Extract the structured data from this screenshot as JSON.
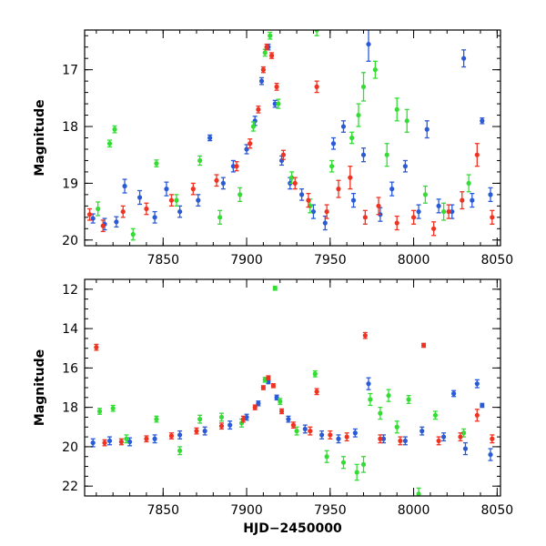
{
  "chart_data": [
    {
      "type": "scatter",
      "panel": "top",
      "xlabel": "",
      "ylabel": "Magnitude",
      "xlim": [
        7803,
        8052
      ],
      "ylim": [
        20.1,
        16.3
      ],
      "y_inverted": true,
      "x_ticks": [
        7850,
        7900,
        7950,
        8000,
        8050
      ],
      "y_ticks": [
        17,
        18,
        19,
        20
      ],
      "error_bars": true,
      "grid": false,
      "legend": "none",
      "series": [
        {
          "color": "#2a5ad6",
          "points": [
            {
              "x": 7808,
              "y": 19.62,
              "e": 0.08
            },
            {
              "x": 7815,
              "y": 19.72,
              "e": 0.1
            },
            {
              "x": 7822,
              "y": 19.68,
              "e": 0.09
            },
            {
              "x": 7827,
              "y": 19.05,
              "e": 0.12
            },
            {
              "x": 7836,
              "y": 19.25,
              "e": 0.12
            },
            {
              "x": 7845,
              "y": 19.6,
              "e": 0.1
            },
            {
              "x": 7852,
              "y": 19.1,
              "e": 0.12
            },
            {
              "x": 7860,
              "y": 19.5,
              "e": 0.1
            },
            {
              "x": 7871,
              "y": 19.3,
              "e": 0.1
            },
            {
              "x": 7878,
              "y": 18.2,
              "e": 0.05
            },
            {
              "x": 7886,
              "y": 19.0,
              "e": 0.1
            },
            {
              "x": 7892,
              "y": 18.7,
              "e": 0.1
            },
            {
              "x": 7900,
              "y": 18.4,
              "e": 0.08
            },
            {
              "x": 7905,
              "y": 17.9,
              "e": 0.08
            },
            {
              "x": 7909,
              "y": 17.2,
              "e": 0.06
            },
            {
              "x": 7913,
              "y": 16.6,
              "e": 0.05
            },
            {
              "x": 7917,
              "y": 17.6,
              "e": 0.06
            },
            {
              "x": 7921,
              "y": 18.6,
              "e": 0.08
            },
            {
              "x": 7926,
              "y": 19.0,
              "e": 0.1
            },
            {
              "x": 7933,
              "y": 19.2,
              "e": 0.1
            },
            {
              "x": 7940,
              "y": 19.5,
              "e": 0.12
            },
            {
              "x": 7947,
              "y": 19.7,
              "e": 0.12
            },
            {
              "x": 7952,
              "y": 18.3,
              "e": 0.1
            },
            {
              "x": 7958,
              "y": 18.0,
              "e": 0.1
            },
            {
              "x": 7964,
              "y": 19.3,
              "e": 0.12
            },
            {
              "x": 7970,
              "y": 18.5,
              "e": 0.12
            },
            {
              "x": 7973,
              "y": 16.55,
              "e": 0.3
            },
            {
              "x": 7980,
              "y": 19.55,
              "e": 0.12
            },
            {
              "x": 7987,
              "y": 19.1,
              "e": 0.12
            },
            {
              "x": 7995,
              "y": 18.7,
              "e": 0.1
            },
            {
              "x": 8003,
              "y": 19.5,
              "e": 0.12
            },
            {
              "x": 8008,
              "y": 18.05,
              "e": 0.15
            },
            {
              "x": 8015,
              "y": 19.4,
              "e": 0.12
            },
            {
              "x": 8023,
              "y": 19.5,
              "e": 0.12
            },
            {
              "x": 8030,
              "y": 16.8,
              "e": 0.15
            },
            {
              "x": 8035,
              "y": 19.3,
              "e": 0.12
            },
            {
              "x": 8041,
              "y": 17.9,
              "e": 0.05
            },
            {
              "x": 8046,
              "y": 19.2,
              "e": 0.12
            }
          ]
        },
        {
          "color": "#33dd33",
          "points": [
            {
              "x": 7811,
              "y": 19.45,
              "e": 0.12
            },
            {
              "x": 7818,
              "y": 18.3,
              "e": 0.06
            },
            {
              "x": 7821,
              "y": 18.05,
              "e": 0.06
            },
            {
              "x": 7832,
              "y": 19.9,
              "e": 0.1
            },
            {
              "x": 7846,
              "y": 18.65,
              "e": 0.06
            },
            {
              "x": 7858,
              "y": 19.3,
              "e": 0.1
            },
            {
              "x": 7872,
              "y": 18.6,
              "e": 0.08
            },
            {
              "x": 7884,
              "y": 19.6,
              "e": 0.12
            },
            {
              "x": 7896,
              "y": 19.2,
              "e": 0.12
            },
            {
              "x": 7904,
              "y": 18.0,
              "e": 0.08
            },
            {
              "x": 7911,
              "y": 16.7,
              "e": 0.06
            },
            {
              "x": 7914,
              "y": 16.4,
              "e": 0.06
            },
            {
              "x": 7919,
              "y": 17.6,
              "e": 0.08
            },
            {
              "x": 7927,
              "y": 18.9,
              "e": 0.1
            },
            {
              "x": 7938,
              "y": 19.4,
              "e": 0.12
            },
            {
              "x": 7942,
              "y": 16.3,
              "e": 0.1
            },
            {
              "x": 7951,
              "y": 18.7,
              "e": 0.1
            },
            {
              "x": 7963,
              "y": 18.2,
              "e": 0.1
            },
            {
              "x": 7967,
              "y": 17.8,
              "e": 0.2
            },
            {
              "x": 7970,
              "y": 17.3,
              "e": 0.25
            },
            {
              "x": 7977,
              "y": 17.0,
              "e": 0.15
            },
            {
              "x": 7984,
              "y": 18.5,
              "e": 0.2
            },
            {
              "x": 7990,
              "y": 17.7,
              "e": 0.2
            },
            {
              "x": 7996,
              "y": 17.9,
              "e": 0.2
            },
            {
              "x": 8007,
              "y": 19.2,
              "e": 0.15
            },
            {
              "x": 8018,
              "y": 19.5,
              "e": 0.15
            },
            {
              "x": 8033,
              "y": 19.0,
              "e": 0.15
            }
          ]
        },
        {
          "color": "#ee3322",
          "points": [
            {
              "x": 7806,
              "y": 19.55,
              "e": 0.1
            },
            {
              "x": 7814,
              "y": 19.75,
              "e": 0.1
            },
            {
              "x": 7826,
              "y": 19.5,
              "e": 0.1
            },
            {
              "x": 7840,
              "y": 19.45,
              "e": 0.1
            },
            {
              "x": 7855,
              "y": 19.3,
              "e": 0.1
            },
            {
              "x": 7868,
              "y": 19.1,
              "e": 0.1
            },
            {
              "x": 7882,
              "y": 18.95,
              "e": 0.1
            },
            {
              "x": 7894,
              "y": 18.7,
              "e": 0.08
            },
            {
              "x": 7902,
              "y": 18.3,
              "e": 0.08
            },
            {
              "x": 7907,
              "y": 17.7,
              "e": 0.06
            },
            {
              "x": 7910,
              "y": 17.0,
              "e": 0.05
            },
            {
              "x": 7912,
              "y": 16.6,
              "e": 0.05
            },
            {
              "x": 7915,
              "y": 16.75,
              "e": 0.05
            },
            {
              "x": 7918,
              "y": 17.3,
              "e": 0.06
            },
            {
              "x": 7922,
              "y": 18.5,
              "e": 0.08
            },
            {
              "x": 7929,
              "y": 19.0,
              "e": 0.1
            },
            {
              "x": 7937,
              "y": 19.3,
              "e": 0.12
            },
            {
              "x": 7942,
              "y": 17.3,
              "e": 0.1
            },
            {
              "x": 7948,
              "y": 19.5,
              "e": 0.12
            },
            {
              "x": 7955,
              "y": 19.1,
              "e": 0.15
            },
            {
              "x": 7962,
              "y": 18.9,
              "e": 0.2
            },
            {
              "x": 7971,
              "y": 19.6,
              "e": 0.12
            },
            {
              "x": 7979,
              "y": 19.4,
              "e": 0.15
            },
            {
              "x": 7990,
              "y": 19.7,
              "e": 0.12
            },
            {
              "x": 8000,
              "y": 19.6,
              "e": 0.12
            },
            {
              "x": 8012,
              "y": 19.8,
              "e": 0.12
            },
            {
              "x": 8021,
              "y": 19.5,
              "e": 0.12
            },
            {
              "x": 8029,
              "y": 19.3,
              "e": 0.15
            },
            {
              "x": 8038,
              "y": 18.5,
              "e": 0.2
            },
            {
              "x": 8047,
              "y": 19.6,
              "e": 0.12
            }
          ]
        }
      ]
    },
    {
      "type": "scatter",
      "panel": "bottom",
      "xlabel": "HJD−2450000",
      "ylabel": "Magnitude",
      "xlim": [
        7803,
        8052
      ],
      "ylim": [
        22.5,
        11.5
      ],
      "y_inverted": true,
      "x_ticks": [
        7850,
        7900,
        7950,
        8000,
        8050
      ],
      "y_ticks": [
        12,
        14,
        16,
        18,
        20,
        22
      ],
      "error_bars": true,
      "grid": false,
      "legend": "none",
      "series": [
        {
          "color": "#2a5ad6",
          "points": [
            {
              "x": 7808,
              "y": 19.8,
              "e": 0.2
            },
            {
              "x": 7818,
              "y": 19.7,
              "e": 0.2
            },
            {
              "x": 7830,
              "y": 19.75,
              "e": 0.2
            },
            {
              "x": 7845,
              "y": 19.6,
              "e": 0.2
            },
            {
              "x": 7860,
              "y": 19.4,
              "e": 0.2
            },
            {
              "x": 7875,
              "y": 19.2,
              "e": 0.2
            },
            {
              "x": 7890,
              "y": 18.9,
              "e": 0.2
            },
            {
              "x": 7900,
              "y": 18.5,
              "e": 0.15
            },
            {
              "x": 7907,
              "y": 17.8,
              "e": 0.12
            },
            {
              "x": 7913,
              "y": 16.7,
              "e": 0.1
            },
            {
              "x": 7918,
              "y": 17.5,
              "e": 0.12
            },
            {
              "x": 7925,
              "y": 18.6,
              "e": 0.15
            },
            {
              "x": 7935,
              "y": 19.1,
              "e": 0.2
            },
            {
              "x": 7945,
              "y": 19.4,
              "e": 0.2
            },
            {
              "x": 7955,
              "y": 19.6,
              "e": 0.2
            },
            {
              "x": 7965,
              "y": 19.3,
              "e": 0.2
            },
            {
              "x": 7973,
              "y": 16.8,
              "e": 0.3
            },
            {
              "x": 7982,
              "y": 19.6,
              "e": 0.2
            },
            {
              "x": 7995,
              "y": 19.7,
              "e": 0.2
            },
            {
              "x": 8005,
              "y": 19.2,
              "e": 0.2
            },
            {
              "x": 8018,
              "y": 19.5,
              "e": 0.2
            },
            {
              "x": 8024,
              "y": 17.3,
              "e": 0.15
            },
            {
              "x": 8031,
              "y": 20.1,
              "e": 0.3
            },
            {
              "x": 8038,
              "y": 16.8,
              "e": 0.2
            },
            {
              "x": 8041,
              "y": 17.9,
              "e": 0.1
            },
            {
              "x": 8046,
              "y": 20.4,
              "e": 0.3
            }
          ]
        },
        {
          "color": "#33dd33",
          "points": [
            {
              "x": 7812,
              "y": 18.2,
              "e": 0.15
            },
            {
              "x": 7820,
              "y": 18.05,
              "e": 0.15
            },
            {
              "x": 7828,
              "y": 19.6,
              "e": 0.2
            },
            {
              "x": 7846,
              "y": 18.6,
              "e": 0.15
            },
            {
              "x": 7860,
              "y": 20.2,
              "e": 0.2
            },
            {
              "x": 7872,
              "y": 18.6,
              "e": 0.2
            },
            {
              "x": 7885,
              "y": 18.5,
              "e": 0.2
            },
            {
              "x": 7897,
              "y": 18.8,
              "e": 0.2
            },
            {
              "x": 7911,
              "y": 16.6,
              "e": 0.12
            },
            {
              "x": 7917,
              "y": 11.95,
              "e": 0.1
            },
            {
              "x": 7920,
              "y": 17.7,
              "e": 0.15
            },
            {
              "x": 7930,
              "y": 19.2,
              "e": 0.2
            },
            {
              "x": 7941,
              "y": 16.3,
              "e": 0.15
            },
            {
              "x": 7948,
              "y": 20.5,
              "e": 0.3
            },
            {
              "x": 7958,
              "y": 20.8,
              "e": 0.3
            },
            {
              "x": 7966,
              "y": 21.3,
              "e": 0.4
            },
            {
              "x": 7970,
              "y": 20.9,
              "e": 0.4
            },
            {
              "x": 7974,
              "y": 17.6,
              "e": 0.3
            },
            {
              "x": 7980,
              "y": 18.3,
              "e": 0.3
            },
            {
              "x": 7985,
              "y": 17.4,
              "e": 0.3
            },
            {
              "x": 7990,
              "y": 19.0,
              "e": 0.3
            },
            {
              "x": 7997,
              "y": 17.6,
              "e": 0.2
            },
            {
              "x": 8003,
              "y": 22.4,
              "e": 0.3
            },
            {
              "x": 8013,
              "y": 18.4,
              "e": 0.2
            },
            {
              "x": 8030,
              "y": 19.3,
              "e": 0.2
            }
          ]
        },
        {
          "color": "#ee3322",
          "points": [
            {
              "x": 7810,
              "y": 14.95,
              "e": 0.15
            },
            {
              "x": 7815,
              "y": 19.8,
              "e": 0.15
            },
            {
              "x": 7825,
              "y": 19.75,
              "e": 0.15
            },
            {
              "x": 7840,
              "y": 19.6,
              "e": 0.15
            },
            {
              "x": 7855,
              "y": 19.45,
              "e": 0.15
            },
            {
              "x": 7870,
              "y": 19.2,
              "e": 0.15
            },
            {
              "x": 7885,
              "y": 18.95,
              "e": 0.15
            },
            {
              "x": 7898,
              "y": 18.6,
              "e": 0.15
            },
            {
              "x": 7905,
              "y": 18.0,
              "e": 0.12
            },
            {
              "x": 7910,
              "y": 17.0,
              "e": 0.1
            },
            {
              "x": 7913,
              "y": 16.5,
              "e": 0.1
            },
            {
              "x": 7916,
              "y": 16.9,
              "e": 0.1
            },
            {
              "x": 7921,
              "y": 18.2,
              "e": 0.12
            },
            {
              "x": 7928,
              "y": 18.9,
              "e": 0.15
            },
            {
              "x": 7938,
              "y": 19.2,
              "e": 0.2
            },
            {
              "x": 7942,
              "y": 17.2,
              "e": 0.15
            },
            {
              "x": 7950,
              "y": 19.4,
              "e": 0.2
            },
            {
              "x": 7960,
              "y": 19.5,
              "e": 0.2
            },
            {
              "x": 7971,
              "y": 14.35,
              "e": 0.15
            },
            {
              "x": 7980,
              "y": 19.6,
              "e": 0.2
            },
            {
              "x": 7992,
              "y": 19.7,
              "e": 0.2
            },
            {
              "x": 8006,
              "y": 14.85,
              "e": 0.1
            },
            {
              "x": 8015,
              "y": 19.7,
              "e": 0.2
            },
            {
              "x": 8028,
              "y": 19.5,
              "e": 0.2
            },
            {
              "x": 8038,
              "y": 18.4,
              "e": 0.3
            },
            {
              "x": 8047,
              "y": 19.6,
              "e": 0.2
            }
          ]
        }
      ]
    }
  ]
}
